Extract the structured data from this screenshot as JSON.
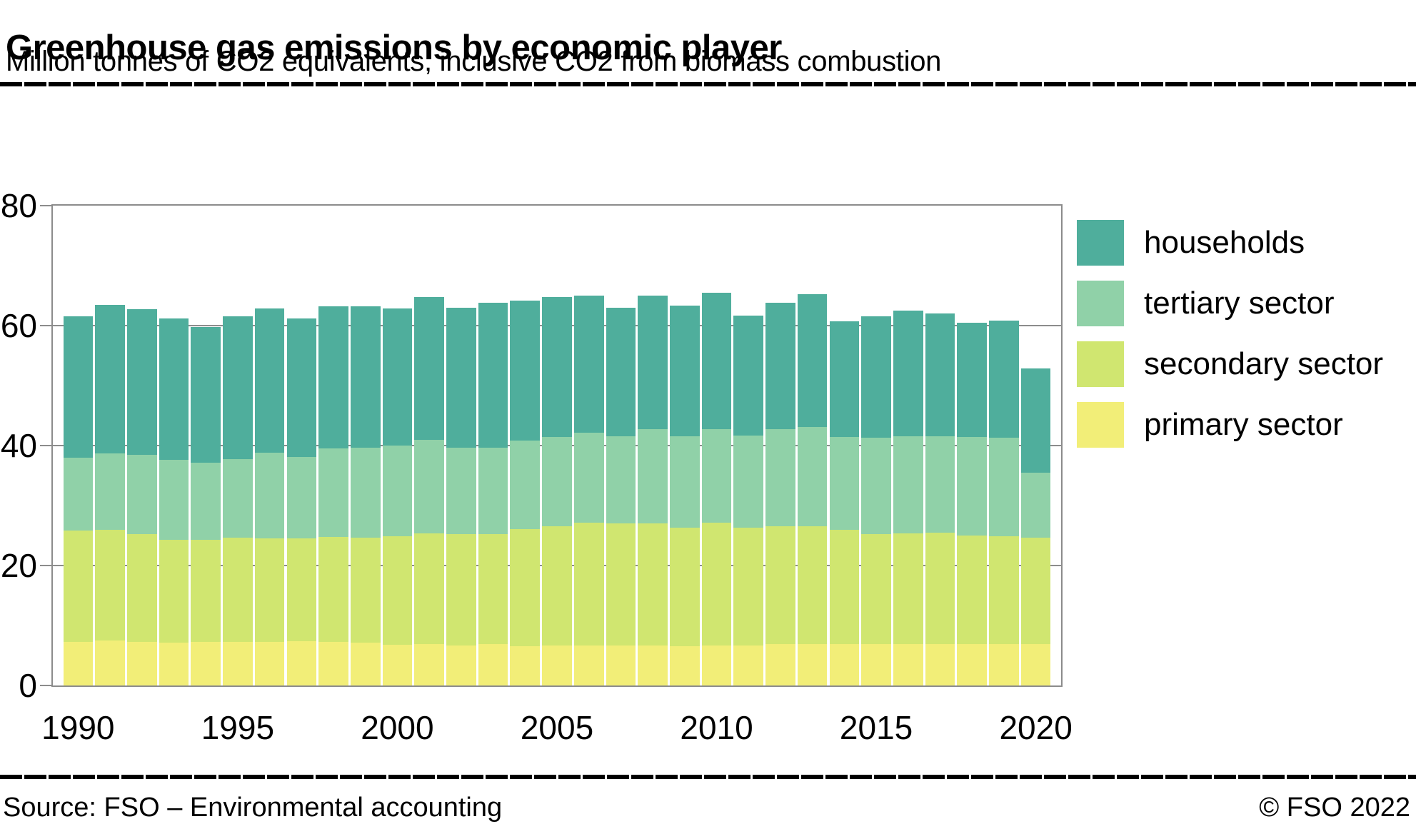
{
  "header": {
    "title": "Greenhouse gas emissions by economic player",
    "subtitle": "Million tonnes of CO2 equivalents, inclusive CO2 from biomass combustion"
  },
  "footer": {
    "source": "Source: FSO – Environmental accounting",
    "copyright": "© FSO 2022"
  },
  "colors": {
    "households": "#4fae9c",
    "tertiary": "#90d1a8",
    "secondary": "#d0e670",
    "primary": "#f2ee78",
    "grid": "#8c8c8c",
    "text": "#000000"
  },
  "chart_data": {
    "type": "bar",
    "stacked": true,
    "title": "Greenhouse gas emissions by economic player",
    "subtitle": "Million tonnes of CO2 equivalents, inclusive CO2 from biomass combustion",
    "unit": "Million tonnes of CO2 equivalents",
    "x": [
      1990,
      1991,
      1992,
      1993,
      1994,
      1995,
      1996,
      1997,
      1998,
      1999,
      2000,
      2001,
      2002,
      2003,
      2004,
      2005,
      2006,
      2007,
      2008,
      2009,
      2010,
      2011,
      2012,
      2013,
      2014,
      2015,
      2016,
      2017,
      2018,
      2019,
      2020
    ],
    "x_tick_labels": [
      "1990",
      "1995",
      "2000",
      "2005",
      "2010",
      "2015",
      "2020"
    ],
    "x_tick_indices": [
      0,
      5,
      10,
      15,
      20,
      25,
      30
    ],
    "ylim": [
      0,
      80
    ],
    "y_ticks": [
      0,
      20,
      40,
      60,
      80
    ],
    "grid": "horizontal",
    "legend_position": "right",
    "legend_order_top_to_bottom": [
      "households",
      "tertiary sector",
      "secondary sector",
      "primary sector"
    ],
    "series": [
      {
        "name": "primary sector",
        "color": "#f2ee78",
        "values": [
          7.3,
          7.5,
          7.3,
          7.1,
          7.3,
          7.3,
          7.3,
          7.4,
          7.3,
          7.1,
          6.8,
          6.9,
          6.7,
          6.9,
          6.5,
          6.7,
          6.7,
          6.7,
          6.7,
          6.5,
          6.7,
          6.7,
          6.9,
          6.9,
          6.9,
          6.9,
          6.9,
          6.9,
          6.9,
          6.9,
          6.9
        ]
      },
      {
        "name": "secondary sector",
        "color": "#d0e670",
        "values": [
          18.5,
          18.4,
          17.9,
          17.2,
          17.0,
          17.3,
          17.2,
          17.1,
          17.5,
          17.6,
          18.1,
          18.5,
          18.6,
          18.3,
          19.6,
          19.8,
          20.4,
          20.3,
          20.3,
          19.8,
          20.4,
          19.6,
          19.6,
          19.6,
          19.0,
          18.4,
          18.5,
          18.6,
          18.1,
          18.0,
          17.8
        ]
      },
      {
        "name": "tertiary sector",
        "color": "#90d1a8",
        "values": [
          12.2,
          12.8,
          13.3,
          13.3,
          12.9,
          13.2,
          14.3,
          13.6,
          14.7,
          14.9,
          15.1,
          15.6,
          14.4,
          14.5,
          14.7,
          14.9,
          15.1,
          14.6,
          15.7,
          15.2,
          15.6,
          15.4,
          16.3,
          16.6,
          15.5,
          16.0,
          16.1,
          16.0,
          16.4,
          16.4,
          10.8
        ]
      },
      {
        "name": "households",
        "color": "#4fae9c",
        "values": [
          23.5,
          24.7,
          24.3,
          23.6,
          22.6,
          23.7,
          24.1,
          23.1,
          23.7,
          23.6,
          22.9,
          23.8,
          23.3,
          24.1,
          23.4,
          23.4,
          22.8,
          21.4,
          22.3,
          21.8,
          22.8,
          20.0,
          21.0,
          22.1,
          19.3,
          20.2,
          21.0,
          20.5,
          19.1,
          19.5,
          17.4
        ]
      }
    ],
    "totals": [
      61.5,
      63.4,
      62.8,
      61.2,
      59.8,
      61.5,
      62.9,
      61.2,
      63.2,
      63.2,
      62.9,
      64.8,
      63.0,
      63.8,
      64.2,
      64.8,
      65.0,
      63.0,
      65.0,
      63.3,
      65.5,
      61.7,
      63.8,
      65.2,
      60.7,
      61.5,
      62.5,
      62.0,
      60.5,
      60.8,
      52.9
    ]
  }
}
